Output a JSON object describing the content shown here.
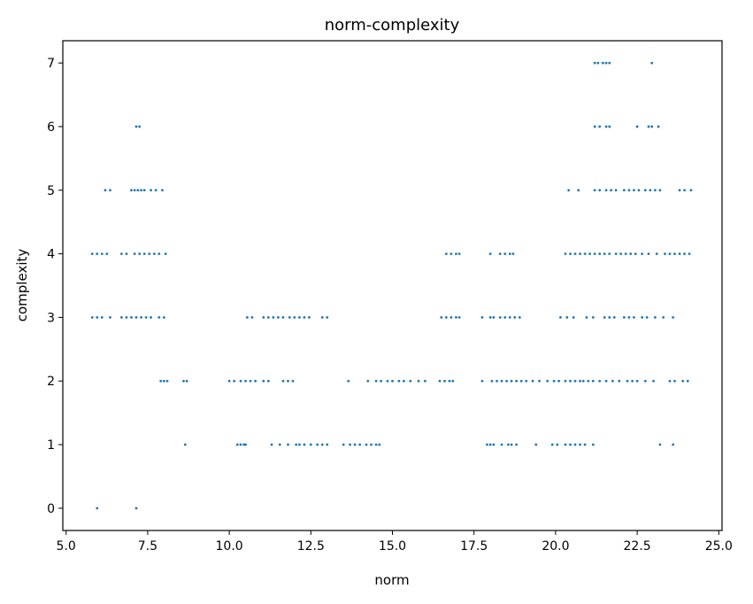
{
  "chart_data": {
    "type": "scatter",
    "title": "norm-complexity",
    "xlabel": "norm",
    "ylabel": "complexity",
    "xlim": [
      4.9,
      25.1
    ],
    "ylim": [
      -0.35,
      7.35
    ],
    "xticks": [
      5.0,
      7.5,
      10.0,
      12.5,
      15.0,
      17.5,
      20.0,
      22.5,
      25.0
    ],
    "xtick_labels": [
      "5.0",
      "7.5",
      "10.0",
      "12.5",
      "15.0",
      "17.5",
      "20.0",
      "22.5",
      "25.0"
    ],
    "yticks": [
      0,
      1,
      2,
      3,
      4,
      5,
      6,
      7
    ],
    "ytick_labels": [
      "0",
      "1",
      "2",
      "3",
      "4",
      "5",
      "6",
      "7"
    ],
    "grid": false,
    "marker_color": "#1f77b4",
    "points": [
      {
        "x": 5.95,
        "y": 0
      },
      {
        "x": 7.15,
        "y": 0
      },
      {
        "x": 8.65,
        "y": 1
      },
      {
        "x": 10.25,
        "y": 1
      },
      {
        "x": 10.35,
        "y": 1
      },
      {
        "x": 10.45,
        "y": 1
      },
      {
        "x": 10.5,
        "y": 1
      },
      {
        "x": 11.3,
        "y": 1
      },
      {
        "x": 11.55,
        "y": 1
      },
      {
        "x": 11.8,
        "y": 1
      },
      {
        "x": 12.05,
        "y": 1
      },
      {
        "x": 12.15,
        "y": 1
      },
      {
        "x": 12.3,
        "y": 1
      },
      {
        "x": 12.5,
        "y": 1
      },
      {
        "x": 12.7,
        "y": 1
      },
      {
        "x": 12.85,
        "y": 1
      },
      {
        "x": 13.0,
        "y": 1
      },
      {
        "x": 13.5,
        "y": 1
      },
      {
        "x": 13.7,
        "y": 1
      },
      {
        "x": 13.85,
        "y": 1
      },
      {
        "x": 14.0,
        "y": 1
      },
      {
        "x": 14.2,
        "y": 1
      },
      {
        "x": 14.35,
        "y": 1
      },
      {
        "x": 14.5,
        "y": 1
      },
      {
        "x": 14.6,
        "y": 1
      },
      {
        "x": 17.9,
        "y": 1
      },
      {
        "x": 18.0,
        "y": 1
      },
      {
        "x": 18.1,
        "y": 1
      },
      {
        "x": 18.35,
        "y": 1
      },
      {
        "x": 18.55,
        "y": 1
      },
      {
        "x": 18.65,
        "y": 1
      },
      {
        "x": 18.8,
        "y": 1
      },
      {
        "x": 19.4,
        "y": 1
      },
      {
        "x": 19.9,
        "y": 1
      },
      {
        "x": 20.05,
        "y": 1
      },
      {
        "x": 20.3,
        "y": 1
      },
      {
        "x": 20.45,
        "y": 1
      },
      {
        "x": 20.6,
        "y": 1
      },
      {
        "x": 20.75,
        "y": 1
      },
      {
        "x": 20.9,
        "y": 1
      },
      {
        "x": 21.15,
        "y": 1
      },
      {
        "x": 23.2,
        "y": 1
      },
      {
        "x": 23.6,
        "y": 1
      },
      {
        "x": 7.9,
        "y": 2
      },
      {
        "x": 8.0,
        "y": 2
      },
      {
        "x": 8.1,
        "y": 2
      },
      {
        "x": 8.6,
        "y": 2
      },
      {
        "x": 8.7,
        "y": 2
      },
      {
        "x": 10.0,
        "y": 2
      },
      {
        "x": 10.15,
        "y": 2
      },
      {
        "x": 10.35,
        "y": 2
      },
      {
        "x": 10.5,
        "y": 2
      },
      {
        "x": 10.65,
        "y": 2
      },
      {
        "x": 10.8,
        "y": 2
      },
      {
        "x": 11.05,
        "y": 2
      },
      {
        "x": 11.2,
        "y": 2
      },
      {
        "x": 11.65,
        "y": 2
      },
      {
        "x": 11.8,
        "y": 2
      },
      {
        "x": 11.95,
        "y": 2
      },
      {
        "x": 13.65,
        "y": 2
      },
      {
        "x": 14.25,
        "y": 2
      },
      {
        "x": 14.5,
        "y": 2
      },
      {
        "x": 14.65,
        "y": 2
      },
      {
        "x": 14.85,
        "y": 2
      },
      {
        "x": 15.0,
        "y": 2
      },
      {
        "x": 15.2,
        "y": 2
      },
      {
        "x": 15.35,
        "y": 2
      },
      {
        "x": 15.55,
        "y": 2
      },
      {
        "x": 15.8,
        "y": 2
      },
      {
        "x": 16.0,
        "y": 2
      },
      {
        "x": 16.45,
        "y": 2
      },
      {
        "x": 16.6,
        "y": 2
      },
      {
        "x": 16.75,
        "y": 2
      },
      {
        "x": 16.85,
        "y": 2
      },
      {
        "x": 17.75,
        "y": 2
      },
      {
        "x": 18.05,
        "y": 2
      },
      {
        "x": 18.2,
        "y": 2
      },
      {
        "x": 18.35,
        "y": 2
      },
      {
        "x": 18.5,
        "y": 2
      },
      {
        "x": 18.65,
        "y": 2
      },
      {
        "x": 18.8,
        "y": 2
      },
      {
        "x": 18.95,
        "y": 2
      },
      {
        "x": 19.1,
        "y": 2
      },
      {
        "x": 19.3,
        "y": 2
      },
      {
        "x": 19.5,
        "y": 2
      },
      {
        "x": 19.75,
        "y": 2
      },
      {
        "x": 19.95,
        "y": 2
      },
      {
        "x": 20.1,
        "y": 2
      },
      {
        "x": 20.3,
        "y": 2
      },
      {
        "x": 20.45,
        "y": 2
      },
      {
        "x": 20.6,
        "y": 2
      },
      {
        "x": 20.75,
        "y": 2
      },
      {
        "x": 20.85,
        "y": 2
      },
      {
        "x": 21.0,
        "y": 2
      },
      {
        "x": 21.15,
        "y": 2
      },
      {
        "x": 21.35,
        "y": 2
      },
      {
        "x": 21.55,
        "y": 2
      },
      {
        "x": 21.75,
        "y": 2
      },
      {
        "x": 21.95,
        "y": 2
      },
      {
        "x": 22.2,
        "y": 2
      },
      {
        "x": 22.35,
        "y": 2
      },
      {
        "x": 22.5,
        "y": 2
      },
      {
        "x": 22.75,
        "y": 2
      },
      {
        "x": 23.0,
        "y": 2
      },
      {
        "x": 23.5,
        "y": 2
      },
      {
        "x": 23.65,
        "y": 2
      },
      {
        "x": 23.9,
        "y": 2
      },
      {
        "x": 24.05,
        "y": 2
      },
      {
        "x": 5.8,
        "y": 3
      },
      {
        "x": 5.95,
        "y": 3
      },
      {
        "x": 6.1,
        "y": 3
      },
      {
        "x": 6.35,
        "y": 3
      },
      {
        "x": 6.7,
        "y": 3
      },
      {
        "x": 6.85,
        "y": 3
      },
      {
        "x": 7.0,
        "y": 3
      },
      {
        "x": 7.15,
        "y": 3
      },
      {
        "x": 7.3,
        "y": 3
      },
      {
        "x": 7.45,
        "y": 3
      },
      {
        "x": 7.6,
        "y": 3
      },
      {
        "x": 7.85,
        "y": 3
      },
      {
        "x": 8.0,
        "y": 3
      },
      {
        "x": 10.55,
        "y": 3
      },
      {
        "x": 10.7,
        "y": 3
      },
      {
        "x": 11.05,
        "y": 3
      },
      {
        "x": 11.2,
        "y": 3
      },
      {
        "x": 11.35,
        "y": 3
      },
      {
        "x": 11.5,
        "y": 3
      },
      {
        "x": 11.65,
        "y": 3
      },
      {
        "x": 11.85,
        "y": 3
      },
      {
        "x": 12.0,
        "y": 3
      },
      {
        "x": 12.15,
        "y": 3
      },
      {
        "x": 12.3,
        "y": 3
      },
      {
        "x": 12.45,
        "y": 3
      },
      {
        "x": 12.85,
        "y": 3
      },
      {
        "x": 13.0,
        "y": 3
      },
      {
        "x": 16.5,
        "y": 3
      },
      {
        "x": 16.65,
        "y": 3
      },
      {
        "x": 16.8,
        "y": 3
      },
      {
        "x": 16.95,
        "y": 3
      },
      {
        "x": 17.05,
        "y": 3
      },
      {
        "x": 17.75,
        "y": 3
      },
      {
        "x": 18.0,
        "y": 3
      },
      {
        "x": 18.1,
        "y": 3
      },
      {
        "x": 18.3,
        "y": 3
      },
      {
        "x": 18.45,
        "y": 3
      },
      {
        "x": 18.6,
        "y": 3
      },
      {
        "x": 18.75,
        "y": 3
      },
      {
        "x": 18.9,
        "y": 3
      },
      {
        "x": 20.15,
        "y": 3
      },
      {
        "x": 20.35,
        "y": 3
      },
      {
        "x": 20.55,
        "y": 3
      },
      {
        "x": 20.95,
        "y": 3
      },
      {
        "x": 21.15,
        "y": 3
      },
      {
        "x": 21.5,
        "y": 3
      },
      {
        "x": 21.65,
        "y": 3
      },
      {
        "x": 21.8,
        "y": 3
      },
      {
        "x": 22.1,
        "y": 3
      },
      {
        "x": 22.25,
        "y": 3
      },
      {
        "x": 22.4,
        "y": 3
      },
      {
        "x": 22.65,
        "y": 3
      },
      {
        "x": 22.8,
        "y": 3
      },
      {
        "x": 23.05,
        "y": 3
      },
      {
        "x": 23.3,
        "y": 3
      },
      {
        "x": 23.6,
        "y": 3
      },
      {
        "x": 5.8,
        "y": 4
      },
      {
        "x": 5.95,
        "y": 4
      },
      {
        "x": 6.1,
        "y": 4
      },
      {
        "x": 6.25,
        "y": 4
      },
      {
        "x": 6.7,
        "y": 4
      },
      {
        "x": 6.85,
        "y": 4
      },
      {
        "x": 7.1,
        "y": 4
      },
      {
        "x": 7.25,
        "y": 4
      },
      {
        "x": 7.4,
        "y": 4
      },
      {
        "x": 7.55,
        "y": 4
      },
      {
        "x": 7.7,
        "y": 4
      },
      {
        "x": 7.85,
        "y": 4
      },
      {
        "x": 8.05,
        "y": 4
      },
      {
        "x": 16.65,
        "y": 4
      },
      {
        "x": 16.8,
        "y": 4
      },
      {
        "x": 16.95,
        "y": 4
      },
      {
        "x": 17.05,
        "y": 4
      },
      {
        "x": 18.0,
        "y": 4
      },
      {
        "x": 18.3,
        "y": 4
      },
      {
        "x": 18.45,
        "y": 4
      },
      {
        "x": 18.6,
        "y": 4
      },
      {
        "x": 18.7,
        "y": 4
      },
      {
        "x": 20.3,
        "y": 4
      },
      {
        "x": 20.45,
        "y": 4
      },
      {
        "x": 20.6,
        "y": 4
      },
      {
        "x": 20.75,
        "y": 4
      },
      {
        "x": 20.9,
        "y": 4
      },
      {
        "x": 21.05,
        "y": 4
      },
      {
        "x": 21.2,
        "y": 4
      },
      {
        "x": 21.35,
        "y": 4
      },
      {
        "x": 21.5,
        "y": 4
      },
      {
        "x": 21.65,
        "y": 4
      },
      {
        "x": 21.85,
        "y": 4
      },
      {
        "x": 22.0,
        "y": 4
      },
      {
        "x": 22.15,
        "y": 4
      },
      {
        "x": 22.3,
        "y": 4
      },
      {
        "x": 22.45,
        "y": 4
      },
      {
        "x": 22.65,
        "y": 4
      },
      {
        "x": 22.85,
        "y": 4
      },
      {
        "x": 23.1,
        "y": 4
      },
      {
        "x": 23.35,
        "y": 4
      },
      {
        "x": 23.5,
        "y": 4
      },
      {
        "x": 23.65,
        "y": 4
      },
      {
        "x": 23.8,
        "y": 4
      },
      {
        "x": 23.95,
        "y": 4
      },
      {
        "x": 24.1,
        "y": 4
      },
      {
        "x": 6.2,
        "y": 5
      },
      {
        "x": 6.35,
        "y": 5
      },
      {
        "x": 7.0,
        "y": 5
      },
      {
        "x": 7.1,
        "y": 5
      },
      {
        "x": 7.2,
        "y": 5
      },
      {
        "x": 7.3,
        "y": 5
      },
      {
        "x": 7.4,
        "y": 5
      },
      {
        "x": 7.6,
        "y": 5
      },
      {
        "x": 7.75,
        "y": 5
      },
      {
        "x": 7.95,
        "y": 5
      },
      {
        "x": 20.4,
        "y": 5
      },
      {
        "x": 20.7,
        "y": 5
      },
      {
        "x": 21.2,
        "y": 5
      },
      {
        "x": 21.35,
        "y": 5
      },
      {
        "x": 21.55,
        "y": 5
      },
      {
        "x": 21.7,
        "y": 5
      },
      {
        "x": 21.85,
        "y": 5
      },
      {
        "x": 22.1,
        "y": 5
      },
      {
        "x": 22.25,
        "y": 5
      },
      {
        "x": 22.4,
        "y": 5
      },
      {
        "x": 22.55,
        "y": 5
      },
      {
        "x": 22.75,
        "y": 5
      },
      {
        "x": 22.9,
        "y": 5
      },
      {
        "x": 23.05,
        "y": 5
      },
      {
        "x": 23.2,
        "y": 5
      },
      {
        "x": 23.8,
        "y": 5
      },
      {
        "x": 23.95,
        "y": 5
      },
      {
        "x": 24.15,
        "y": 5
      },
      {
        "x": 7.15,
        "y": 6
      },
      {
        "x": 7.25,
        "y": 6
      },
      {
        "x": 21.2,
        "y": 6
      },
      {
        "x": 21.35,
        "y": 6
      },
      {
        "x": 21.55,
        "y": 6
      },
      {
        "x": 21.65,
        "y": 6
      },
      {
        "x": 22.5,
        "y": 6
      },
      {
        "x": 22.85,
        "y": 6
      },
      {
        "x": 22.95,
        "y": 6
      },
      {
        "x": 23.15,
        "y": 6
      },
      {
        "x": 21.2,
        "y": 7
      },
      {
        "x": 21.3,
        "y": 7
      },
      {
        "x": 21.45,
        "y": 7
      },
      {
        "x": 21.55,
        "y": 7
      },
      {
        "x": 21.65,
        "y": 7
      },
      {
        "x": 22.95,
        "y": 7
      }
    ]
  }
}
